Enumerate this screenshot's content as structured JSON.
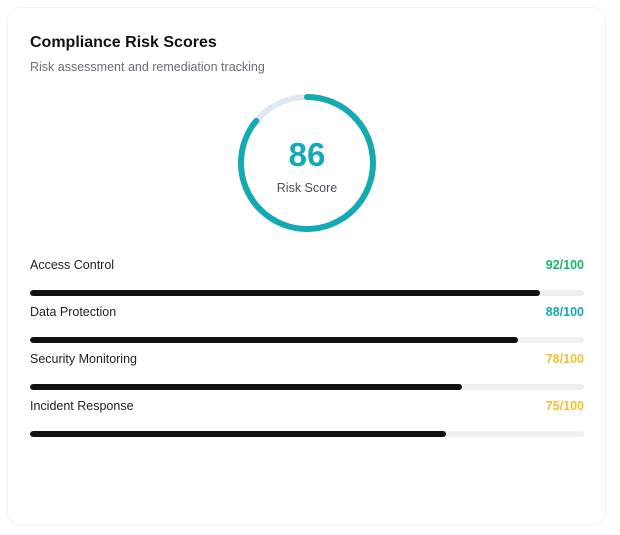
{
  "card": {
    "title": "Compliance Risk Scores",
    "subtitle": "Risk assessment and remediation tracking"
  },
  "gauge": {
    "value": "86",
    "label": "Risk Score",
    "progress_fraction": 0.86,
    "arc_color": "#14aab3",
    "track_color": "#e2e8ef"
  },
  "metrics": [
    {
      "name": "Access Control",
      "score_text": "92/100",
      "fill_fraction": 0.92,
      "color": "#16b86a"
    },
    {
      "name": "Data Protection",
      "score_text": "88/100",
      "fill_fraction": 0.88,
      "color": "#14aab3"
    },
    {
      "name": "Security Monitoring",
      "score_text": "78/100",
      "fill_fraction": 0.78,
      "color": "#f2c230"
    },
    {
      "name": "Incident Response",
      "score_text": "75/100",
      "fill_fraction": 0.75,
      "color": "#f2c230"
    }
  ]
}
